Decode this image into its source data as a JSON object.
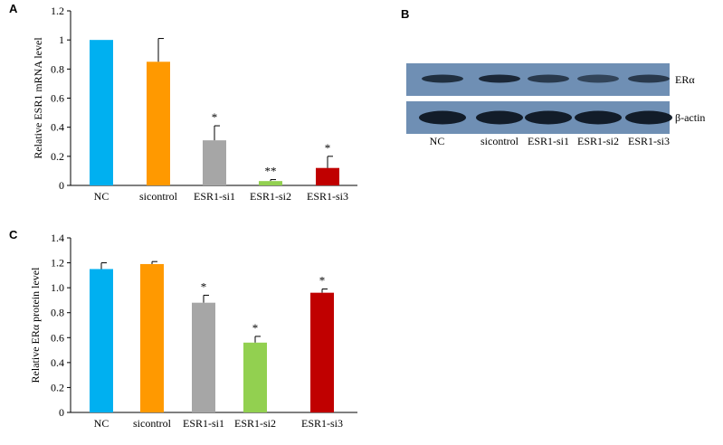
{
  "panels": {
    "a": "A",
    "b": "B",
    "c": "C"
  },
  "chart_data": [
    {
      "type": "bar",
      "panel": "A",
      "ylabel": "Relative ESR1 mRNA level",
      "ylim": [
        0,
        1.2
      ],
      "yticks": [
        "0",
        "0.2",
        "0.4",
        "0.6",
        "0.8",
        "1",
        "1.2"
      ],
      "categories": [
        "NC",
        "sicontrol",
        "ESR1-si1",
        "ESR1-si2",
        "ESR1-si3"
      ],
      "values": [
        1.0,
        0.85,
        0.31,
        0.03,
        0.12
      ],
      "errors": [
        0.0,
        0.16,
        0.1,
        0.01,
        0.08
      ],
      "significance": [
        "",
        "",
        "*",
        "**",
        "*"
      ],
      "colors": [
        "#00b0f0",
        "#ff9900",
        "#a6a6a6",
        "#92d050",
        "#c00000"
      ]
    },
    {
      "type": "bar",
      "panel": "C",
      "ylabel": "Relative ERα protein level",
      "ylim": [
        0,
        1.4
      ],
      "yticks": [
        "0",
        "0.2",
        "0.4",
        "0.6",
        "0.8",
        "1.0",
        "1.2",
        "1.4"
      ],
      "categories": [
        "NC",
        "sicontrol",
        "ESR1-si1",
        "ESR1-si2",
        "ESR1-si3"
      ],
      "values": [
        1.15,
        1.19,
        0.88,
        0.56,
        0.96
      ],
      "errors": [
        0.05,
        0.02,
        0.06,
        0.05,
        0.03
      ],
      "significance": [
        "",
        "",
        "*",
        "*",
        "*"
      ],
      "colors": [
        "#00b0f0",
        "#ff9900",
        "#a6a6a6",
        "#92d050",
        "#c00000"
      ]
    }
  ],
  "blot": {
    "lanes": [
      "NC",
      "sicontrol",
      "ESR1-si1",
      "ESR1-si2",
      "ESR1-si3"
    ],
    "rows": [
      {
        "label": "ERα",
        "intensities": [
          0.75,
          0.85,
          0.6,
          0.45,
          0.6
        ]
      },
      {
        "label": "β-actin",
        "intensities": [
          1.0,
          1.0,
          1.0,
          1.0,
          1.0
        ]
      }
    ],
    "background": "#6f8fb4"
  }
}
